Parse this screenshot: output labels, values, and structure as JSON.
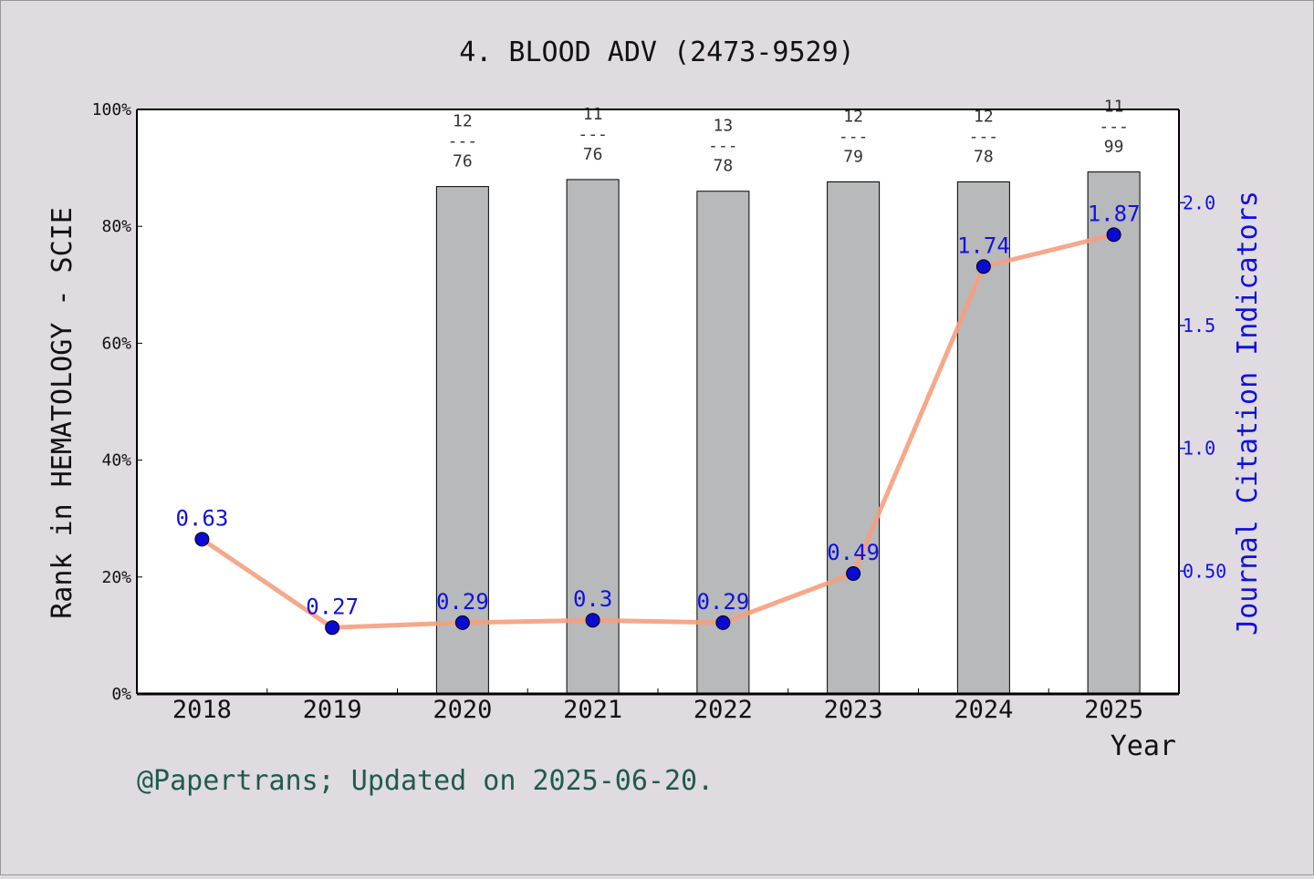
{
  "chart_data": {
    "type": "bar",
    "title": "4. BLOOD ADV (2473-9529)",
    "xlabel": "Year",
    "ylabel_left": "Rank in HEMATOLOGY - SCIE",
    "ylabel_right": "Journal Citation Indicators",
    "footer": "@Papertrans; Updated on 2025-06-20.",
    "categories": [
      "2018",
      "2019",
      "2020",
      "2021",
      "2022",
      "2023",
      "2024",
      "2025"
    ],
    "left_axis": {
      "ylim": [
        0,
        100
      ],
      "ticks": [
        0,
        20,
        40,
        60,
        80,
        100
      ],
      "tick_labels": [
        "0%",
        "20%",
        "40%",
        "60%",
        "80%",
        "100%"
      ]
    },
    "right_axis": {
      "ylim": [
        0,
        2.38
      ],
      "ticks": [
        0.5,
        1.0,
        1.5,
        2.0
      ],
      "tick_labels": [
        "0.50",
        "1.0",
        "1.5",
        "2.0"
      ]
    },
    "bars": [
      {
        "x": "2020",
        "value": 86.8,
        "rank": "12",
        "total": "76"
      },
      {
        "x": "2021",
        "value": 88.0,
        "rank": "11",
        "total": "76"
      },
      {
        "x": "2022",
        "value": 86.0,
        "rank": "13",
        "total": "78"
      },
      {
        "x": "2023",
        "value": 87.6,
        "rank": "12",
        "total": "79"
      },
      {
        "x": "2024",
        "value": 87.6,
        "rank": "12",
        "total": "78"
      },
      {
        "x": "2025",
        "value": 89.3,
        "rank": "11",
        "total": "99"
      }
    ],
    "bar_label_divider": "---",
    "jci_series": {
      "x": [
        "2018",
        "2019",
        "2020",
        "2021",
        "2022",
        "2023",
        "2024",
        "2025"
      ],
      "values": [
        0.63,
        0.27,
        0.29,
        0.3,
        0.29,
        0.49,
        1.74,
        1.87
      ],
      "labels": [
        "0.63",
        "0.27",
        "0.29",
        "0.3",
        "0.29",
        "0.49",
        "1.74",
        "1.87"
      ]
    },
    "colors": {
      "background": "#dfdbe0",
      "plot_bg": "#ffffff",
      "bar_fill": "#b8b9bb",
      "line": "#f59e7e",
      "marker": "#0a0ad2",
      "right_axis": "#1010e0",
      "footer": "#1f5a4e"
    },
    "legend": "none",
    "grid": false
  }
}
